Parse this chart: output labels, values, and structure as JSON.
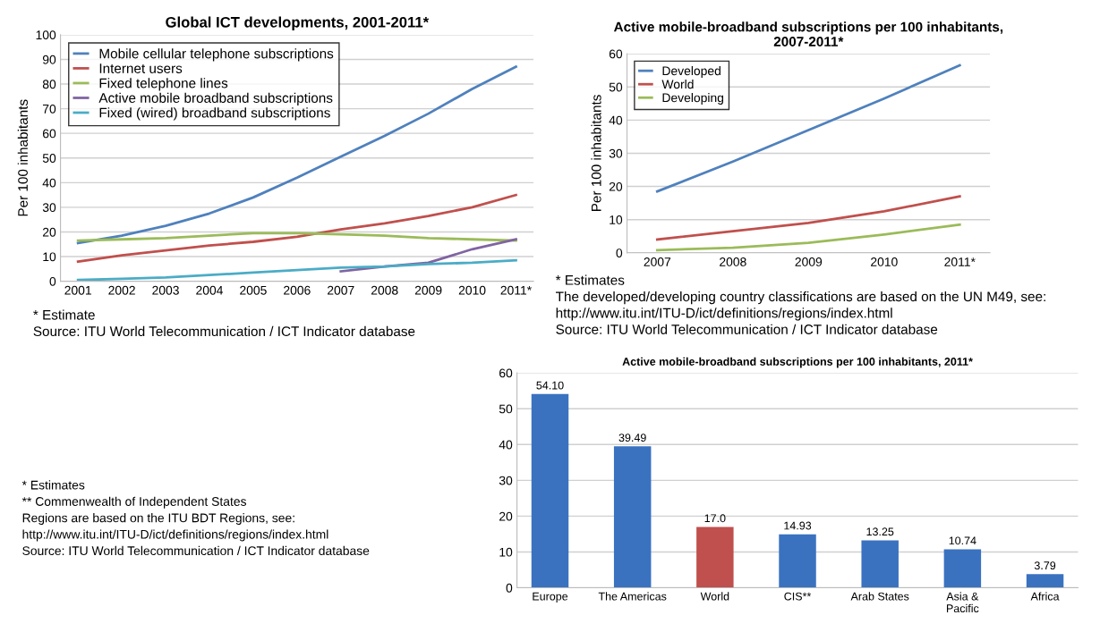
{
  "chart_data": [
    {
      "type": "line",
      "title": "Global ICT developments, 2001-2011*",
      "ylabel": "Per 100 inhabitants",
      "categories": [
        "2001",
        "2002",
        "2003",
        "2004",
        "2005",
        "2006",
        "2007",
        "2008",
        "2009",
        "2010",
        "2011*"
      ],
      "series": [
        {
          "name": "Mobile cellular telephone subscriptions",
          "color": "#4f81bd",
          "values": [
            15.5,
            18.5,
            22.5,
            27.5,
            34,
            42,
            50.5,
            59,
            68,
            78,
            87
          ]
        },
        {
          "name": "Internet users",
          "color": "#c0504d",
          "values": [
            8,
            10.5,
            12.5,
            14.5,
            16,
            18,
            21,
            23.5,
            26.5,
            30,
            35
          ]
        },
        {
          "name": "Fixed telephone lines",
          "color": "#9bbb59",
          "values": [
            16.5,
            17,
            17.5,
            18.5,
            19.5,
            19.5,
            19,
            18.5,
            17.5,
            17,
            16.5
          ]
        },
        {
          "name": "Active mobile broadband subscriptions",
          "color": "#8064a2",
          "values": [
            null,
            null,
            null,
            null,
            null,
            null,
            4,
            6,
            7.5,
            13,
            17
          ]
        },
        {
          "name": "Fixed (wired) broadband subscriptions",
          "color": "#4bacc6",
          "values": [
            0.5,
            1,
            1.5,
            2.5,
            3.5,
            4.5,
            5.5,
            6,
            7,
            7.5,
            8.5
          ]
        }
      ],
      "ylim": [
        0,
        100
      ],
      "yticks": [
        0,
        10,
        20,
        30,
        40,
        50,
        60,
        70,
        80,
        90,
        100
      ],
      "grid": "y",
      "legend": "top left",
      "annotations": [
        "* Estimate",
        "Source: ITU World Telecommunication / ICT Indicator database"
      ]
    },
    {
      "type": "line",
      "title": "Active mobile-broadband subscriptions per 100 inhabitants,\n2007-2011*",
      "ylabel": "Per 100 inhabitants",
      "categories": [
        "2007",
        "2008",
        "2009",
        "2010",
        "2011*"
      ],
      "series": [
        {
          "name": "Developed",
          "color": "#4f81bd",
          "values": [
            18.5,
            27.5,
            37,
            46.5,
            56.5
          ]
        },
        {
          "name": "World",
          "color": "#c0504d",
          "values": [
            4,
            6.5,
            9,
            12.5,
            17
          ]
        },
        {
          "name": "Developing",
          "color": "#9bbb59",
          "values": [
            0.8,
            1.5,
            3,
            5.5,
            8.5
          ]
        }
      ],
      "ylim": [
        0,
        60
      ],
      "yticks": [
        0,
        10,
        20,
        30,
        40,
        50,
        60
      ],
      "grid": "y",
      "legend": "top left",
      "annotations": [
        "* Estimates",
        "The developed/developing country classifications are based on the UN M49, see:",
        "http://www.itu.int/ITU-D/ict/definitions/regions/index.html",
        "Source: ITU World Telecommunication / ICT Indicator database"
      ]
    },
    {
      "type": "bar",
      "title": "Active mobile-broadband subscriptions per 100 inhabitants, 2011*",
      "categories": [
        "Europe",
        "The Americas",
        "World",
        "CIS**",
        "Arab States",
        "Asia &\nPacific",
        "Africa"
      ],
      "values": [
        54.1,
        39.49,
        17.0,
        14.93,
        13.25,
        10.74,
        3.79
      ],
      "value_labels": [
        "54.10",
        "39.49",
        "17.0",
        "14.93",
        "13.25",
        "10.74",
        "3.79"
      ],
      "colors": [
        "#3a72c0",
        "#3a72c0",
        "#c0504d",
        "#3a72c0",
        "#3a72c0",
        "#3a72c0",
        "#3a72c0"
      ],
      "ylim": [
        0,
        60
      ],
      "yticks": [
        0,
        10,
        20,
        30,
        40,
        50,
        60
      ],
      "grid": "y",
      "annotations": [
        "* Estimates",
        "** Commenwealth of Independent States",
        "Regions are based on the ITU BDT Regions, see:",
        "http://www.itu.int/ITU-D/ict/definitions/regions/index.html",
        "Source: ITU World Telecommunication / ICT Indicator database"
      ]
    }
  ]
}
